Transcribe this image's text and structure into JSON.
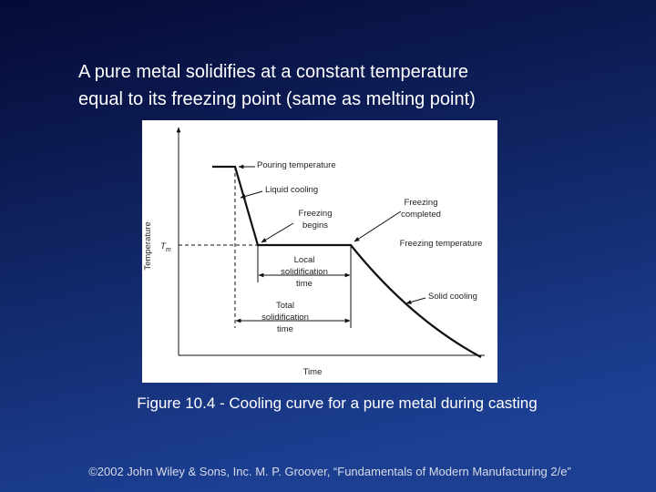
{
  "heading": {
    "lines": [
      "A pure metal solidifies at a constant temperature",
      "equal to its freezing point (same as melting point)"
    ]
  },
  "figure": {
    "y_axis_label": "Temperature",
    "x_axis_label": "Time",
    "symbol": {
      "main": "T",
      "sub": "m"
    },
    "annotations": {
      "pouring": [
        "Pouring temperature"
      ],
      "liquid_cooling": [
        "Liquid cooling"
      ],
      "freezing_begins": [
        "Freezing",
        "begins"
      ],
      "freezing_completed": [
        "Freezing",
        "completed"
      ],
      "freezing_temperature": [
        "Freezing temperature"
      ],
      "local_time": [
        "Local",
        "solidification",
        "time"
      ],
      "total_time": [
        "Total",
        "solidification",
        "time"
      ],
      "solid_cooling": [
        "Solid cooling"
      ]
    },
    "caption": "Figure 10.4 - Cooling curve for a pure metal during casting"
  },
  "footer": "©2002 John Wiley & Sons, Inc. M. P. Groover, “Fundamentals of Modern Manufacturing 2/e”"
}
